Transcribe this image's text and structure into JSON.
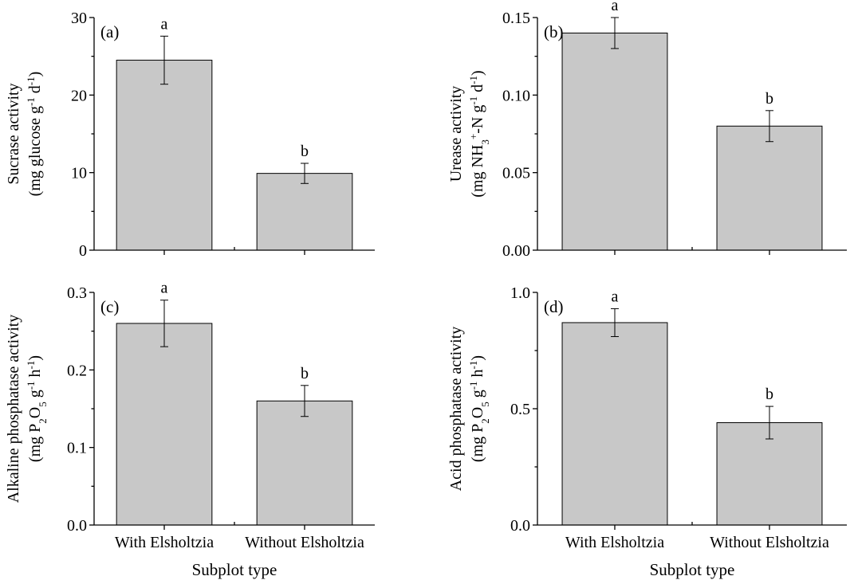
{
  "chart_data": [
    {
      "type": "bar",
      "panel_label": "(a)",
      "categories": [
        "With Elsholtzia",
        "Without Elsholtzia"
      ],
      "values": [
        24.5,
        9.9
      ],
      "errors": [
        3.1,
        1.3
      ],
      "significance": [
        "a",
        "b"
      ],
      "ylim": [
        0,
        30
      ],
      "yticks": [
        "0",
        "10",
        "20",
        "30"
      ],
      "ylabel_line1": "Sucrase activity",
      "ylabel_line2": [
        "(mg glucose g",
        "-1",
        " d",
        "-1",
        ")"
      ],
      "xlabel": ""
    },
    {
      "type": "bar",
      "panel_label": "(b)",
      "categories": [
        "With Elsholtzia",
        "Without Elsholtzia"
      ],
      "values": [
        0.14,
        0.08
      ],
      "errors": [
        0.01,
        0.01
      ],
      "significance": [
        "a",
        "b"
      ],
      "ylim": [
        0,
        0.15
      ],
      "yticks": [
        "0.00",
        "0.05",
        "0.10",
        "0.15"
      ],
      "ylabel_line1": "Urease activity",
      "ylabel_line2": [
        "(mg NH",
        "3",
        "+",
        "-N g",
        "-1",
        " d",
        "-1",
        ")"
      ],
      "xlabel": ""
    },
    {
      "type": "bar",
      "panel_label": "(c)",
      "categories": [
        "With Elsholtzia",
        "Without Elsholtzia"
      ],
      "values": [
        0.26,
        0.16
      ],
      "errors": [
        0.03,
        0.02
      ],
      "significance": [
        "a",
        "b"
      ],
      "ylim": [
        0,
        0.3
      ],
      "yticks": [
        "0.0",
        "0.1",
        "0.2",
        "0.3"
      ],
      "ylabel_line1": "Alkaline phosphatase activity",
      "ylabel_line2": [
        "(mg P",
        "2",
        "O",
        "5",
        " g",
        "-1",
        " h",
        "-1",
        ")"
      ],
      "xlabel": "Subplot type"
    },
    {
      "type": "bar",
      "panel_label": "(d)",
      "categories": [
        "With Elsholtzia",
        "Without Elsholtzia"
      ],
      "values": [
        0.87,
        0.44
      ],
      "errors": [
        0.06,
        0.07
      ],
      "significance": [
        "a",
        "b"
      ],
      "ylim": [
        0,
        1.0
      ],
      "yticks": [
        "0.0",
        "0.5",
        "1.0"
      ],
      "ylabel_line1": "Acid phosphatase activity",
      "ylabel_line2": [
        "(mg P",
        "2",
        "O",
        "5",
        " g",
        "-1",
        " h",
        "-1",
        ")"
      ],
      "xlabel": "Subplot type"
    }
  ]
}
